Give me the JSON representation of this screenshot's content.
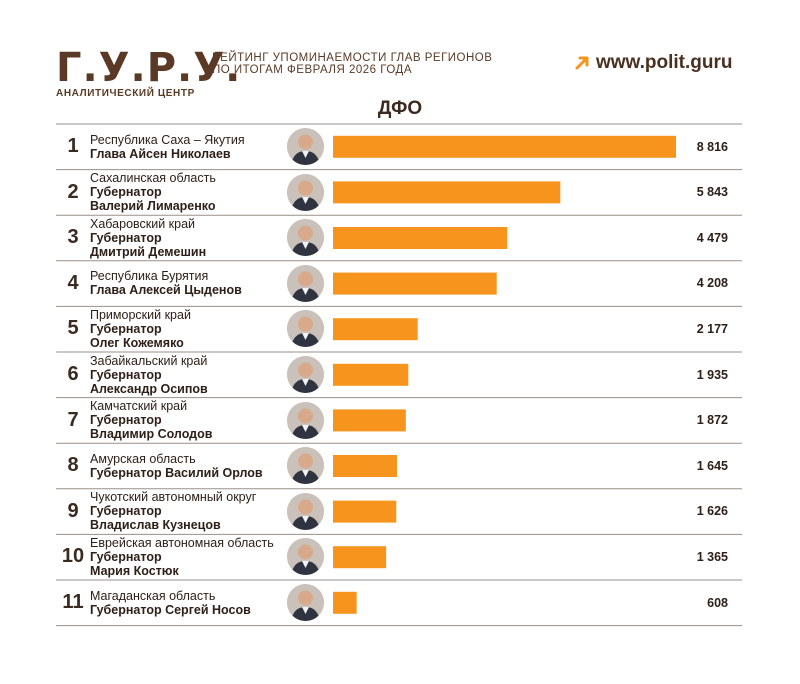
{
  "header": {
    "logo": "Г.У.Р.У.",
    "logo_sub": "АНАЛИТИЧЕСКИЙ ЦЕНТР",
    "subtitle_line1": "РЕЙТИНГ УПОМИНАЕМОСТИ ГЛАВ РЕГИОНОВ",
    "subtitle_line2": "ПО ИТОГАМ ФЕВРАЛЯ 2026 ГОДА",
    "site": "www.polit.guru"
  },
  "colors": {
    "bar": "#f7941d",
    "brand": "#5a3a26",
    "accent": "#f7941d",
    "divider": "#9a8f88"
  },
  "chart_data": {
    "type": "bar",
    "orientation": "horizontal",
    "title": "ДФО",
    "xlim": [
      0,
      8816
    ],
    "grid": false,
    "rows": [
      {
        "rank": "1",
        "region": "Республика Саха – Якутия",
        "person_lines": [
          "Глава Айсен Николаев"
        ],
        "value": 8816,
        "value_label": "8 816"
      },
      {
        "rank": "2",
        "region": "Сахалинская область",
        "person_lines": [
          "Губернатор",
          "Валерий Лимаренко"
        ],
        "value": 5843,
        "value_label": "5 843"
      },
      {
        "rank": "3",
        "region": "Хабаровский край",
        "person_lines": [
          "Губернатор",
          "Дмитрий Демешин"
        ],
        "value": 4479,
        "value_label": "4 479"
      },
      {
        "rank": "4",
        "region": "Республика Бурятия",
        "person_lines": [
          "Глава Алексей Цыденов"
        ],
        "value": 4208,
        "value_label": "4 208"
      },
      {
        "rank": "5",
        "region": "Приморский край",
        "person_lines": [
          "Губернатор",
          "Олег Кожемяко"
        ],
        "value": 2177,
        "value_label": "2 177"
      },
      {
        "rank": "6",
        "region": "Забайкальский край",
        "person_lines": [
          "Губернатор",
          "Александр Осипов"
        ],
        "value": 1935,
        "value_label": "1 935"
      },
      {
        "rank": "7",
        "region": "Камчатский край",
        "person_lines": [
          "Губернатор",
          "Владимир Солодов"
        ],
        "value": 1872,
        "value_label": "1 872"
      },
      {
        "rank": "8",
        "region": "Амурская область",
        "person_lines": [
          "Губернатор Василий Орлов"
        ],
        "value": 1645,
        "value_label": "1 645"
      },
      {
        "rank": "9",
        "region": "Чукотский автономный округ",
        "person_lines": [
          "Губернатор",
          "Владислав Кузнецов"
        ],
        "value": 1626,
        "value_label": "1 626"
      },
      {
        "rank": "10",
        "region": "Еврейская автономная область",
        "person_lines": [
          "Губернатор",
          "Мария Костюк"
        ],
        "value": 1365,
        "value_label": "1 365"
      },
      {
        "rank": "11",
        "region": "Магаданская область",
        "person_lines": [
          "Губернатор Сергей Носов"
        ],
        "value": 608,
        "value_label": "608"
      }
    ]
  }
}
